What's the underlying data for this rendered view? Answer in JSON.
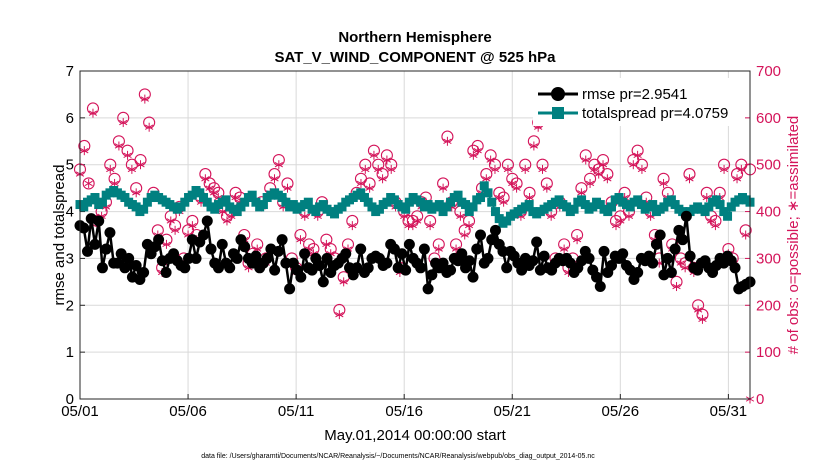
{
  "chart_data": {
    "type": "line",
    "title": "Northern Hemisphere",
    "subtitle": "SAT_V_WIND_COMPONENT @ 525 hPa",
    "xlabel": "May.01,2014 00:00:00 start",
    "ylabel": "rmse and totalspread",
    "ylabel_right": "# of obs: o=possible; ∗=assimilated",
    "footnote": "data file: /Users/gharamti/Documents/NCAR/Reanalysis/~/Documents/NCAR/Reanalysis/webpub/obs_diag_output_2014-05.nc",
    "x_range": [
      1,
      32
    ],
    "x_ticks": [
      {
        "value": 1,
        "label": "05/01"
      },
      {
        "value": 6,
        "label": "05/06"
      },
      {
        "value": 11,
        "label": "05/11"
      },
      {
        "value": 16,
        "label": "05/16"
      },
      {
        "value": 21,
        "label": "05/21"
      },
      {
        "value": 26,
        "label": "05/26"
      },
      {
        "value": 31,
        "label": "05/31"
      }
    ],
    "ylim": [
      0,
      7
    ],
    "y_ticks": [
      "0",
      "1",
      "2",
      "3",
      "4",
      "5",
      "6",
      "7"
    ],
    "ylim_right": [
      0,
      700
    ],
    "y_ticks_right": [
      "0",
      "100",
      "200",
      "300",
      "400",
      "500",
      "600",
      "700"
    ],
    "grid": true,
    "legend_position": "top-right",
    "series": [
      {
        "name": "rmse pr=2.9541",
        "color": "#000000",
        "marker": "circle",
        "axis": "left",
        "values": [
          3.7,
          3.65,
          3.15,
          3.85,
          3.3,
          3.8,
          2.8,
          3.2,
          3.55,
          2.9,
          2.9,
          3.1,
          2.8,
          3.0,
          2.6,
          2.85,
          2.55,
          2.7,
          3.3,
          3.1,
          3.25,
          3.4,
          2.95,
          2.7,
          3.0,
          3.1,
          2.95,
          2.85,
          2.8,
          3.0,
          3.4,
          3.0,
          3.35,
          3.5,
          3.8,
          3.2,
          2.9,
          2.8,
          3.3,
          2.9,
          2.8,
          3.1,
          3.0,
          3.4,
          3.25,
          3.0,
          2.9,
          3.05,
          2.8,
          2.9,
          3.0,
          3.2,
          2.75,
          3.15,
          3.4,
          2.9,
          2.35,
          2.9,
          2.75,
          2.6,
          3.1,
          2.8,
          2.75,
          3.0,
          2.85,
          2.5,
          3.0,
          2.7,
          2.85,
          2.9,
          3.0,
          3.1,
          2.8,
          2.65,
          2.8,
          3.2,
          2.7,
          2.8,
          3.0,
          3.05,
          3.0,
          2.85,
          2.9,
          3.3,
          3.2,
          2.8,
          3.1,
          2.75,
          3.3,
          3.0,
          2.9,
          2.8,
          3.2,
          2.35,
          2.65,
          2.9,
          2.8,
          2.9,
          2.7,
          2.75,
          3.0,
          2.95,
          3.1,
          2.8,
          2.95,
          2.6,
          3.2,
          3.5,
          2.9,
          3.0,
          3.4,
          3.6,
          3.3,
          3.15,
          2.8,
          3.15,
          3.05,
          2.9,
          2.75,
          3.0,
          2.85,
          2.95,
          3.35,
          2.75,
          3.05,
          2.8,
          2.75,
          2.9,
          3.0,
          2.95,
          3.0,
          2.9,
          2.7,
          2.8,
          2.95,
          3.15,
          3.0,
          2.75,
          2.6,
          2.4,
          3.15,
          2.7,
          2.85,
          3.05,
          3.0,
          3.1,
          2.85,
          2.75,
          2.55,
          2.7,
          3.0,
          2.95,
          3.05,
          2.9,
          3.3,
          3.5,
          2.65,
          3.0,
          2.7,
          3.2,
          3.6,
          3.4,
          3.9,
          3.05,
          2.8,
          2.75,
          2.9,
          2.95,
          2.8,
          2.7,
          2.85,
          3.0,
          2.9,
          3.05,
          2.95,
          2.8,
          2.35,
          2.4,
          2.45,
          2.5
        ]
      },
      {
        "name": "totalspread pr=4.0759",
        "color": "#008080",
        "marker": "square",
        "axis": "left",
        "values": [
          4.15,
          4.1,
          4.2,
          4.25,
          4.3,
          4.15,
          4.2,
          4.35,
          4.4,
          4.45,
          4.4,
          4.35,
          4.3,
          4.2,
          4.15,
          4.1,
          4.0,
          4.05,
          4.2,
          4.3,
          4.35,
          4.3,
          4.25,
          4.2,
          4.15,
          4.1,
          4.05,
          4.1,
          4.2,
          4.3,
          4.35,
          4.45,
          4.4,
          4.3,
          4.2,
          4.1,
          4.05,
          4.15,
          4.2,
          4.25,
          4.1,
          4.05,
          4.0,
          4.1,
          4.2,
          4.3,
          4.35,
          4.2,
          4.1,
          4.15,
          4.3,
          4.35,
          4.4,
          4.35,
          4.3,
          4.2,
          4.1,
          4.15,
          4.05,
          4.1,
          4.15,
          4.2,
          4.05,
          4.0,
          4.1,
          4.15,
          4.05,
          4.0,
          3.95,
          4.05,
          4.1,
          4.2,
          4.25,
          4.3,
          4.35,
          4.4,
          4.3,
          4.2,
          4.1,
          4.0,
          4.05,
          4.15,
          4.2,
          4.3,
          4.25,
          4.15,
          4.1,
          4.05,
          4.2,
          4.3,
          4.25,
          4.2,
          4.1,
          4.15,
          4.05,
          4.1,
          4.15,
          4.0,
          4.1,
          4.2,
          4.3,
          4.35,
          4.2,
          4.15,
          4.0,
          4.1,
          4.25,
          4.3,
          4.55,
          4.4,
          4.2,
          4.0,
          3.85,
          3.75,
          3.8,
          3.9,
          3.95,
          4.0,
          4.05,
          4.1,
          4.15,
          4.0,
          3.95,
          4.0,
          4.05,
          4.1,
          4.15,
          4.2,
          4.25,
          4.15,
          4.1,
          4.0,
          4.05,
          4.2,
          4.25,
          4.15,
          4.05,
          4.1,
          4.2,
          4.15,
          4.05,
          4.0,
          4.1,
          4.25,
          4.3,
          4.2,
          4.15,
          4.1,
          4.2,
          4.25,
          4.15,
          4.05,
          4.1,
          4.15,
          4.0,
          4.05,
          4.1,
          4.2,
          4.25,
          4.15,
          4.05,
          4.0,
          3.95,
          4.0,
          4.05,
          4.1,
          4.05,
          4.0,
          4.1,
          4.2,
          4.25,
          4.15,
          4.0,
          3.9,
          4.1,
          4.2,
          4.25,
          4.3,
          4.25,
          4.2
        ]
      },
      {
        "name": "possible",
        "color": "#d4145a",
        "marker": "circle-open",
        "axis": "right",
        "values": [
          490,
          540,
          460,
          620,
          380,
          400,
          420,
          500,
          470,
          550,
          600,
          530,
          500,
          450,
          510,
          650,
          590,
          440,
          360,
          280,
          340,
          390,
          370,
          410,
          300,
          360,
          380,
          350,
          430,
          480,
          460,
          450,
          440,
          410,
          390,
          400,
          440,
          430,
          350,
          290,
          310,
          330,
          420,
          300,
          450,
          480,
          510,
          420,
          460,
          300,
          280,
          350,
          400,
          330,
          320,
          400,
          420,
          340,
          320,
          300,
          190,
          260,
          330,
          380,
          440,
          470,
          500,
          460,
          530,
          500,
          480,
          520,
          500,
          420,
          280,
          400,
          380,
          380,
          390,
          420,
          430,
          380,
          300,
          330,
          460,
          560,
          420,
          330,
          400,
          360,
          380,
          530,
          540,
          450,
          480,
          520,
          500,
          440,
          430,
          500,
          470,
          460,
          400,
          500,
          440,
          550,
          590,
          500,
          460,
          400,
          300,
          420,
          330,
          280,
          300,
          350,
          450,
          520,
          470,
          500,
          490,
          510,
          480,
          420,
          380,
          390,
          440,
          400,
          510,
          530,
          500,
          430,
          400,
          350,
          300,
          470,
          440,
          330,
          250,
          300,
          290,
          480,
          280,
          200,
          180,
          440,
          390,
          380,
          440,
          500,
          320,
          300,
          480,
          500,
          360,
          490
        ]
      },
      {
        "name": "assimilated",
        "color": "#d4145a",
        "marker": "asterisk",
        "axis": "right",
        "values": [
          480,
          530,
          460,
          610,
          380,
          390,
          410,
          490,
          460,
          540,
          590,
          520,
          490,
          440,
          500,
          640,
          580,
          430,
          350,
          270,
          330,
          380,
          360,
          400,
          290,
          350,
          370,
          340,
          420,
          470,
          450,
          440,
          430,
          400,
          380,
          390,
          430,
          420,
          340,
          280,
          300,
          320,
          410,
          290,
          440,
          470,
          500,
          410,
          450,
          290,
          270,
          340,
          390,
          320,
          310,
          390,
          410,
          330,
          310,
          290,
          180,
          250,
          320,
          370,
          430,
          460,
          490,
          450,
          520,
          490,
          470,
          510,
          490,
          410,
          270,
          390,
          370,
          370,
          380,
          410,
          420,
          370,
          290,
          320,
          450,
          550,
          410,
          320,
          390,
          350,
          370,
          520,
          530,
          440,
          470,
          510,
          490,
          430,
          420,
          490,
          460,
          450,
          390,
          490,
          430,
          540,
          580,
          490,
          450,
          390,
          290,
          410,
          320,
          270,
          290,
          340,
          440,
          510,
          460,
          490,
          480,
          500,
          470,
          410,
          370,
          380,
          430,
          390,
          500,
          520,
          490,
          420,
          390,
          340,
          290,
          460,
          430,
          320,
          240,
          290,
          280,
          470,
          270,
          190,
          170,
          430,
          380,
          370,
          430,
          490,
          310,
          290,
          470,
          490,
          350,
          0
        ]
      }
    ]
  }
}
